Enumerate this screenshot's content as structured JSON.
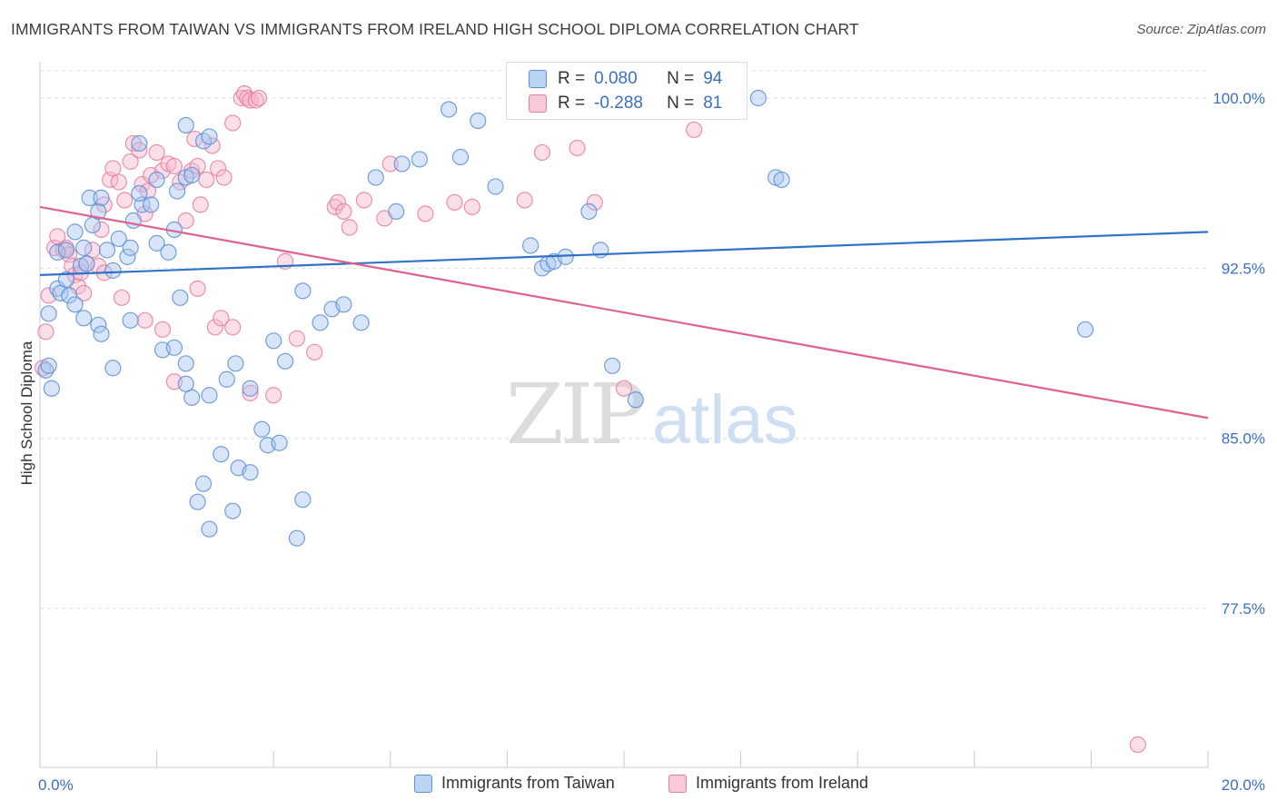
{
  "title": "IMMIGRANTS FROM TAIWAN VS IMMIGRANTS FROM IRELAND HIGH SCHOOL DIPLOMA CORRELATION CHART",
  "source": "Source: ZipAtlas.com",
  "watermark": {
    "zip": "ZIP",
    "atlas": "atlas"
  },
  "legend": {
    "taiwan": {
      "r_label": "R =",
      "r_value": "0.080",
      "n_label": "N =",
      "n_value": "94"
    },
    "ireland": {
      "r_label": "R =",
      "r_value": "-0.288",
      "n_label": "N =",
      "n_value": "81"
    }
  },
  "bottom_legend": {
    "taiwan": "Immigrants from Taiwan",
    "ireland": "Immigrants from Ireland"
  },
  "colors": {
    "taiwan_fill": "#a9c6ef",
    "taiwan_stroke": "#5b8fd6",
    "taiwan_line": "#2f72c8",
    "ireland_fill": "#f6b8cd",
    "ireland_stroke": "#e97ca2",
    "ireland_line": "#e0608f",
    "tick_text": "#3a6fc4"
  },
  "chart_data": {
    "type": "scatter",
    "title": "IMMIGRANTS FROM TAIWAN VS IMMIGRANTS FROM IRELAND HIGH SCHOOL DIPLOMA CORRELATION CHART",
    "xlabel": "",
    "ylabel": "High School Diploma",
    "xlim": [
      0,
      20
    ],
    "ylim": [
      70.5,
      101.2
    ],
    "x_tick_labels": [
      {
        "value": 0,
        "label": "0.0%"
      },
      {
        "value": 20,
        "label": "20.0%"
      }
    ],
    "y_ticks": [
      {
        "value": 100,
        "label": "100.0%"
      },
      {
        "value": 92.5,
        "label": "92.5%"
      },
      {
        "value": 85,
        "label": "85.0%"
      },
      {
        "value": 77.5,
        "label": "77.5%"
      }
    ],
    "series": [
      {
        "name": "Immigrants from Taiwan",
        "trend": {
          "x": [
            0,
            20
          ],
          "y": [
            92.2,
            94.1
          ]
        },
        "points": [
          [
            0.1,
            88.0
          ],
          [
            0.15,
            88.2
          ],
          [
            0.2,
            87.2
          ],
          [
            0.15,
            90.5
          ],
          [
            0.3,
            91.6
          ],
          [
            0.35,
            91.4
          ],
          [
            0.3,
            93.2
          ],
          [
            0.45,
            93.3
          ],
          [
            0.45,
            92.0
          ],
          [
            0.5,
            91.3
          ],
          [
            0.6,
            94.1
          ],
          [
            0.7,
            92.6
          ],
          [
            0.75,
            93.4
          ],
          [
            0.8,
            92.7
          ],
          [
            0.9,
            94.4
          ],
          [
            1.0,
            95.0
          ],
          [
            0.85,
            95.6
          ],
          [
            1.05,
            95.6
          ],
          [
            1.15,
            93.3
          ],
          [
            1.25,
            92.4
          ],
          [
            1.35,
            93.8
          ],
          [
            1.5,
            93.0
          ],
          [
            1.55,
            93.4
          ],
          [
            1.6,
            94.6
          ],
          [
            1.75,
            95.3
          ],
          [
            1.9,
            95.3
          ],
          [
            2.0,
            93.6
          ],
          [
            2.2,
            93.2
          ],
          [
            2.3,
            94.2
          ],
          [
            2.35,
            95.9
          ],
          [
            2.5,
            96.5
          ],
          [
            2.6,
            96.6
          ],
          [
            2.8,
            98.1
          ],
          [
            2.9,
            98.3
          ],
          [
            1.7,
            95.8
          ],
          [
            1.7,
            98.0
          ],
          [
            2.0,
            96.4
          ],
          [
            2.5,
            98.8
          ],
          [
            0.6,
            90.9
          ],
          [
            0.75,
            90.3
          ],
          [
            1.0,
            90.0
          ],
          [
            1.05,
            89.6
          ],
          [
            1.25,
            88.1
          ],
          [
            1.55,
            90.2
          ],
          [
            2.1,
            88.9
          ],
          [
            2.3,
            89.0
          ],
          [
            2.4,
            91.2
          ],
          [
            2.5,
            88.3
          ],
          [
            2.6,
            86.8
          ],
          [
            2.9,
            86.9
          ],
          [
            2.5,
            87.4
          ],
          [
            3.1,
            84.3
          ],
          [
            3.2,
            87.6
          ],
          [
            3.35,
            88.3
          ],
          [
            3.6,
            87.2
          ],
          [
            3.8,
            85.4
          ],
          [
            4.0,
            89.3
          ],
          [
            4.2,
            88.4
          ],
          [
            4.5,
            91.5
          ],
          [
            4.8,
            90.1
          ],
          [
            5.0,
            90.7
          ],
          [
            5.2,
            90.9
          ],
          [
            5.5,
            90.1
          ],
          [
            5.75,
            96.5
          ],
          [
            6.1,
            95.0
          ],
          [
            6.2,
            97.1
          ],
          [
            6.5,
            97.3
          ],
          [
            7.0,
            99.5
          ],
          [
            7.2,
            97.4
          ],
          [
            7.5,
            99.0
          ],
          [
            7.8,
            96.1
          ],
          [
            8.4,
            93.5
          ],
          [
            8.6,
            92.5
          ],
          [
            8.7,
            92.7
          ],
          [
            8.8,
            92.8
          ],
          [
            9.0,
            93.0
          ],
          [
            9.4,
            95.0
          ],
          [
            9.6,
            93.3
          ],
          [
            9.8,
            88.2
          ],
          [
            10.2,
            86.7
          ],
          [
            12.3,
            100.0
          ],
          [
            12.6,
            96.5
          ],
          [
            12.7,
            96.4
          ],
          [
            17.9,
            89.8
          ],
          [
            3.9,
            84.7
          ],
          [
            4.1,
            84.8
          ],
          [
            3.4,
            83.7
          ],
          [
            3.6,
            83.5
          ],
          [
            2.8,
            83.0
          ],
          [
            2.7,
            82.2
          ],
          [
            3.3,
            81.8
          ],
          [
            4.5,
            82.3
          ],
          [
            2.9,
            81.0
          ],
          [
            4.4,
            80.6
          ]
        ]
      },
      {
        "name": "Immigrants from Ireland",
        "trend": {
          "x": [
            0,
            20
          ],
          "y": [
            95.2,
            85.9
          ]
        },
        "points": [
          [
            0.05,
            88.1
          ],
          [
            0.1,
            89.7
          ],
          [
            0.15,
            91.3
          ],
          [
            0.25,
            93.4
          ],
          [
            0.3,
            93.9
          ],
          [
            0.4,
            93.3
          ],
          [
            0.45,
            93.4
          ],
          [
            0.5,
            93.1
          ],
          [
            0.55,
            92.6
          ],
          [
            0.6,
            92.2
          ],
          [
            0.65,
            91.7
          ],
          [
            0.7,
            92.3
          ],
          [
            0.75,
            91.4
          ],
          [
            0.8,
            92.7
          ],
          [
            0.9,
            93.3
          ],
          [
            1.0,
            92.6
          ],
          [
            1.05,
            94.2
          ],
          [
            1.1,
            95.3
          ],
          [
            1.2,
            96.4
          ],
          [
            1.25,
            96.9
          ],
          [
            1.35,
            96.3
          ],
          [
            1.45,
            95.5
          ],
          [
            1.55,
            97.2
          ],
          [
            1.6,
            98.0
          ],
          [
            1.7,
            97.7
          ],
          [
            1.75,
            96.2
          ],
          [
            1.8,
            94.9
          ],
          [
            1.85,
            95.9
          ],
          [
            1.9,
            96.6
          ],
          [
            2.0,
            97.6
          ],
          [
            2.1,
            96.8
          ],
          [
            2.2,
            97.1
          ],
          [
            2.3,
            97.0
          ],
          [
            2.4,
            96.3
          ],
          [
            2.5,
            94.6
          ],
          [
            2.6,
            96.8
          ],
          [
            2.65,
            98.2
          ],
          [
            2.7,
            97.0
          ],
          [
            2.75,
            95.3
          ],
          [
            2.85,
            96.4
          ],
          [
            2.95,
            97.9
          ],
          [
            3.05,
            96.9
          ],
          [
            3.15,
            96.5
          ],
          [
            3.3,
            98.9
          ],
          [
            3.45,
            100.0
          ],
          [
            3.5,
            100.2
          ],
          [
            3.55,
            100.0
          ],
          [
            3.6,
            99.9
          ],
          [
            3.7,
            99.9
          ],
          [
            3.75,
            100.0
          ],
          [
            1.1,
            92.3
          ],
          [
            1.4,
            91.2
          ],
          [
            1.8,
            90.2
          ],
          [
            2.1,
            89.8
          ],
          [
            2.3,
            87.5
          ],
          [
            2.7,
            91.6
          ],
          [
            3.0,
            89.9
          ],
          [
            3.1,
            90.3
          ],
          [
            3.3,
            89.9
          ],
          [
            3.6,
            87.0
          ],
          [
            4.0,
            86.9
          ],
          [
            4.2,
            92.8
          ],
          [
            4.4,
            89.4
          ],
          [
            4.7,
            88.8
          ],
          [
            5.05,
            95.2
          ],
          [
            5.1,
            95.4
          ],
          [
            5.2,
            95.0
          ],
          [
            5.3,
            94.3
          ],
          [
            5.55,
            95.5
          ],
          [
            5.9,
            94.7
          ],
          [
            6.0,
            97.1
          ],
          [
            6.6,
            94.9
          ],
          [
            7.1,
            95.4
          ],
          [
            7.4,
            95.2
          ],
          [
            8.3,
            95.5
          ],
          [
            8.6,
            97.6
          ],
          [
            9.2,
            97.8
          ],
          [
            9.5,
            95.4
          ],
          [
            10.0,
            87.2
          ],
          [
            11.2,
            98.6
          ],
          [
            18.8,
            71.5
          ]
        ]
      }
    ]
  }
}
